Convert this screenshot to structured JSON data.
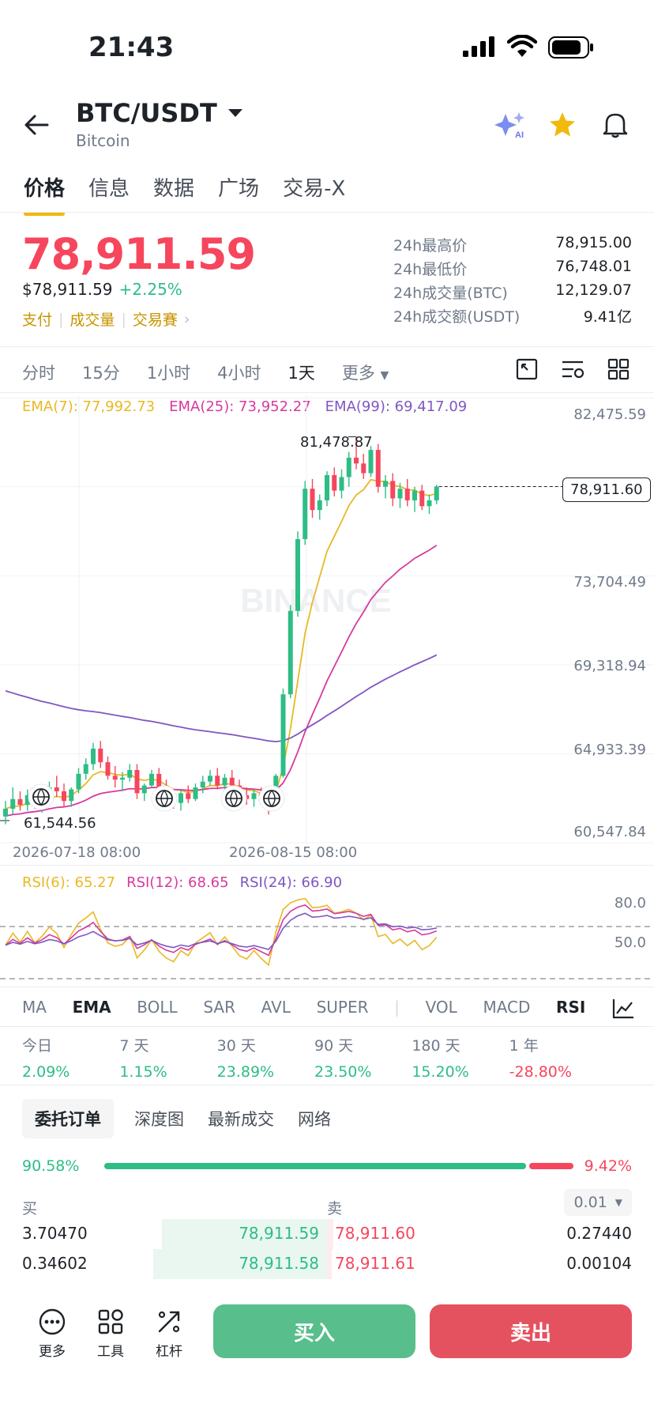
{
  "status": {
    "time": "21:43"
  },
  "header": {
    "pair": "BTC/USDT",
    "subtitle": "Bitcoin"
  },
  "tabs": [
    "价格",
    "信息",
    "数据",
    "广场",
    "交易-X"
  ],
  "price": {
    "last": "78,911.59",
    "usd": "$78,911.59",
    "change": "+2.25%",
    "links": [
      "支付",
      "成交量",
      "交易賽"
    ]
  },
  "stats": [
    {
      "label": "24h最高价",
      "value": "78,915.00"
    },
    {
      "label": "24h最低价",
      "value": "76,748.01"
    },
    {
      "label": "24h成交量(BTC)",
      "value": "12,129.07"
    },
    {
      "label": "24h成交额(USDT)",
      "value": "9.41亿"
    }
  ],
  "timeframes": [
    "分时",
    "15分",
    "1小时",
    "4小时",
    "1天",
    "更多"
  ],
  "ema": {
    "ema7": "EMA(7): 77,992.73",
    "ema25": "EMA(25): 73,952.27",
    "ema99": "EMA(99): 69,417.09"
  },
  "axis_labels": [
    "82,475.59",
    "73,704.49",
    "69,318.94",
    "64,933.39",
    "60,547.84"
  ],
  "chart": {
    "current_price_tag": "78,911.60",
    "high_label": "81,478.87",
    "low_label": "61,544.56",
    "dates": [
      "2026-07-18 08:00",
      "2026-08-15 08:00"
    ],
    "watermark": "BINANCE"
  },
  "chart_data": {
    "type": "candlestick",
    "ylim": [
      60547.84,
      82475.59
    ],
    "candles": [
      [
        61900,
        62700,
        61500,
        62300
      ],
      [
        62300,
        63400,
        62000,
        62800
      ],
      [
        62800,
        63200,
        62200,
        62500
      ],
      [
        62500,
        63300,
        62200,
        63000
      ],
      [
        63000,
        63500,
        62300,
        62600
      ],
      [
        62600,
        63100,
        62100,
        62900
      ],
      [
        62900,
        63700,
        62600,
        63400
      ],
      [
        63400,
        64000,
        62900,
        63200
      ],
      [
        63200,
        63600,
        62400,
        62700
      ],
      [
        62700,
        63400,
        62400,
        63300
      ],
      [
        63300,
        64400,
        63100,
        64100
      ],
      [
        64100,
        64900,
        63800,
        64600
      ],
      [
        64600,
        65700,
        64300,
        65400
      ],
      [
        65400,
        65800,
        64400,
        64700
      ],
      [
        64700,
        65000,
        63800,
        64000
      ],
      [
        64000,
        64500,
        63400,
        63800
      ],
      [
        63800,
        64200,
        63200,
        63900
      ],
      [
        63900,
        64600,
        63700,
        64300
      ],
      [
        64300,
        64600,
        62800,
        63100
      ],
      [
        63100,
        63600,
        62700,
        63500
      ],
      [
        63500,
        64300,
        63400,
        64100
      ],
      [
        64100,
        64400,
        63100,
        63400
      ],
      [
        63400,
        63800,
        62600,
        62900
      ],
      [
        62900,
        63200,
        62300,
        62600
      ],
      [
        62600,
        63300,
        62200,
        63100
      ],
      [
        63100,
        63500,
        62600,
        62800
      ],
      [
        62800,
        63600,
        62700,
        63400
      ],
      [
        63400,
        64000,
        63100,
        63700
      ],
      [
        63700,
        64300,
        63500,
        64000
      ],
      [
        64000,
        64400,
        63300,
        63500
      ],
      [
        63500,
        64100,
        63200,
        63900
      ],
      [
        63900,
        64300,
        63300,
        63500
      ],
      [
        63500,
        63800,
        62800,
        63000
      ],
      [
        63000,
        63400,
        62500,
        62800
      ],
      [
        62800,
        63300,
        62400,
        63100
      ],
      [
        63100,
        63400,
        62500,
        62700
      ],
      [
        62700,
        63000,
        62000,
        62300
      ],
      [
        62300,
        64100,
        62200,
        64000
      ],
      [
        64000,
        68500,
        63900,
        68200
      ],
      [
        68200,
        72800,
        68000,
        72500
      ],
      [
        72500,
        76600,
        72200,
        76200
      ],
      [
        76200,
        79200,
        75900,
        78800
      ],
      [
        78800,
        79300,
        77300,
        77700
      ],
      [
        77700,
        78500,
        77200,
        78200
      ],
      [
        78200,
        79700,
        77900,
        79500
      ],
      [
        79500,
        79900,
        78400,
        78700
      ],
      [
        78700,
        79800,
        78300,
        79400
      ],
      [
        79400,
        80700,
        78900,
        80400
      ],
      [
        80400,
        81478.87,
        79800,
        80100
      ],
      [
        80100,
        80600,
        79300,
        79600
      ],
      [
        79600,
        81000,
        79400,
        80800
      ],
      [
        80800,
        81100,
        78600,
        78900
      ],
      [
        78900,
        79500,
        78300,
        79200
      ],
      [
        79200,
        79600,
        77900,
        78300
      ],
      [
        78300,
        79100,
        77800,
        78800
      ],
      [
        78800,
        79300,
        77900,
        78200
      ],
      [
        78200,
        78900,
        77600,
        78700
      ],
      [
        78700,
        79000,
        77700,
        77900
      ],
      [
        77900,
        78500,
        77500,
        78200
      ],
      [
        78200,
        79000,
        78000,
        78911.6
      ]
    ]
  },
  "rsi": {
    "r6": "RSI(6): 65.27",
    "r12": "RSI(12): 68.65",
    "r24": "RSI(24): 66.90",
    "levels": [
      "80.0",
      "50.0"
    ]
  },
  "indicators": [
    "MA",
    "EMA",
    "BOLL",
    "SAR",
    "AVL",
    "SUPER",
    "VOL",
    "MACD",
    "RSI"
  ],
  "periods": [
    {
      "label": "今日",
      "value": "2.09%",
      "dir": "up"
    },
    {
      "label": "7 天",
      "value": "1.15%",
      "dir": "up"
    },
    {
      "label": "30 天",
      "value": "23.89%",
      "dir": "up"
    },
    {
      "label": "90 天",
      "value": "23.50%",
      "dir": "up"
    },
    {
      "label": "180 天",
      "value": "15.20%",
      "dir": "up"
    },
    {
      "label": "1 年",
      "value": "-28.80%",
      "dir": "down"
    }
  ],
  "order_tabs": [
    "委托订单",
    "深度图",
    "最新成交",
    "网络"
  ],
  "ratio": {
    "buy": "90.58%",
    "sell": "9.42%",
    "buy_fraction": 0.9058
  },
  "orderbook": {
    "buy_label": "买",
    "sell_label": "卖",
    "precision": "0.01",
    "rows": [
      {
        "bid_qty": "3.70470",
        "bid": "78,911.59",
        "ask": "78,911.60",
        "ask_qty": "0.27440",
        "bid_depth": 0.95,
        "ask_depth": 0.02
      },
      {
        "bid_qty": "0.34602",
        "bid": "78,911.58",
        "ask": "78,911.61",
        "ask_qty": "0.00104",
        "bid_depth": 1.0,
        "ask_depth": 0.01
      }
    ]
  },
  "bottom": {
    "more": "更多",
    "tools": "工具",
    "leverage": "杠杆",
    "buy": "买入",
    "sell": "卖出"
  },
  "colors": {
    "up": "#2ebd85",
    "down": "#f6465d",
    "ema7": "#e8b923",
    "ema25": "#d63a9e",
    "ema99": "#7e57c2",
    "accent": "#f0b90b"
  }
}
